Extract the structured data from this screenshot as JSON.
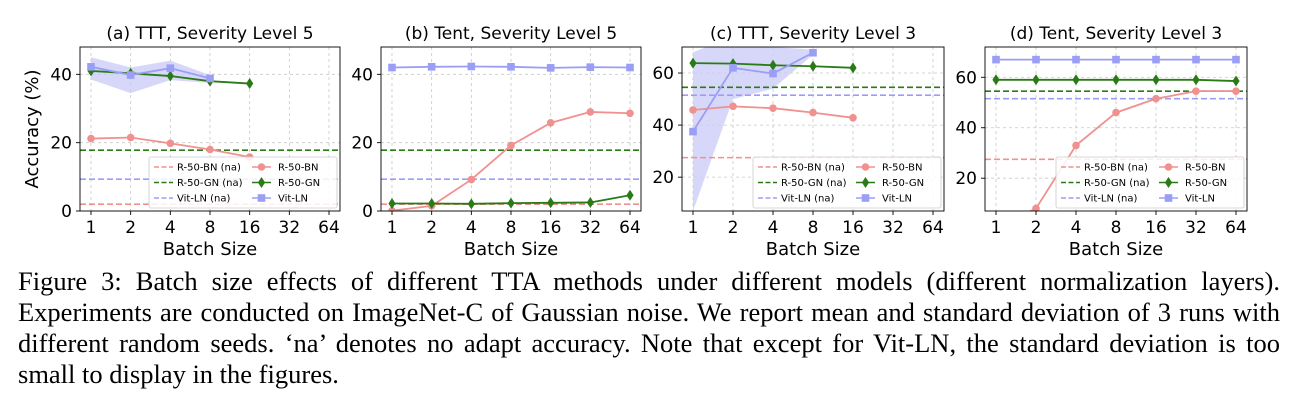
{
  "caption": "Figure 3: Batch size effects of different TTA methods under different models (different normalization layers). Experiments are conducted on ImageNet-C of Gaussian noise. We report mean and standard deviation of 3 runs with different random seeds. ‘na’ denotes no adapt accuracy. Note that except for Vit-LN, the standard deviation is too small to display in the figures.",
  "colors": {
    "bn": "#f0918f",
    "gn": "#2a7a17",
    "ln": "#9b9ef5",
    "band": "#c9cbf7",
    "grid": "#c8c8c8"
  },
  "chart_data": [
    {
      "type": "line",
      "title": "(a) TTT, Severity Level 5",
      "xlabel": "Batch Size",
      "ylabel": "Accuracy (%)",
      "x": [
        1,
        2,
        4,
        8,
        16,
        32,
        64
      ],
      "x_scale": "log2",
      "ylim": [
        0,
        48
      ],
      "yticks": [
        0,
        20,
        40
      ],
      "grid": true,
      "legend": "bottom-right",
      "baselines": [
        {
          "name": "R-50-BN (na)",
          "value": 2
        },
        {
          "name": "R-50-GN (na)",
          "value": 17.8
        },
        {
          "name": "Vit-LN (na)",
          "value": 9.3
        }
      ],
      "series": [
        {
          "name": "R-50-BN",
          "x": [
            1,
            2,
            4,
            8,
            16
          ],
          "values": [
            21.2,
            21.5,
            19.8,
            18.0,
            15.8
          ]
        },
        {
          "name": "R-50-GN",
          "x": [
            1,
            2,
            4,
            8,
            16
          ],
          "values": [
            41.0,
            40.3,
            39.5,
            38.0,
            37.3
          ]
        },
        {
          "name": "Vit-LN",
          "x": [
            1,
            2,
            4,
            8
          ],
          "values": [
            42.2,
            39.8,
            41.8,
            38.8
          ],
          "band_low": [
            38.5,
            34.5,
            38.3,
            37.5
          ],
          "band_high": [
            45.0,
            42.0,
            44.0,
            39.8
          ]
        }
      ]
    },
    {
      "type": "line",
      "title": "(b) Tent, Severity Level 5",
      "xlabel": "Batch Size",
      "ylabel": "",
      "x": [
        1,
        2,
        4,
        8,
        16,
        32,
        64
      ],
      "x_scale": "log2",
      "ylim": [
        0,
        48
      ],
      "yticks": [
        0,
        20,
        40
      ],
      "grid": true,
      "legend": "none",
      "baselines": [
        {
          "name": "R-50-BN (na)",
          "value": 2
        },
        {
          "name": "R-50-GN (na)",
          "value": 17.8
        },
        {
          "name": "Vit-LN (na)",
          "value": 9.3
        }
      ],
      "series": [
        {
          "name": "R-50-BN",
          "x": [
            1,
            2,
            4,
            8,
            16,
            32,
            64
          ],
          "values": [
            0.1,
            1.5,
            9.2,
            19.2,
            25.8,
            29.0,
            28.6
          ]
        },
        {
          "name": "R-50-GN",
          "x": [
            1,
            2,
            4,
            8,
            16,
            32,
            64
          ],
          "values": [
            2.2,
            2.2,
            2.1,
            2.3,
            2.4,
            2.5,
            4.6
          ]
        },
        {
          "name": "Vit-LN",
          "x": [
            1,
            2,
            4,
            8,
            16,
            32,
            64
          ],
          "values": [
            42.0,
            42.2,
            42.3,
            42.2,
            41.9,
            42.1,
            42.0
          ]
        }
      ]
    },
    {
      "type": "line",
      "title": "(c) TTT, Severity Level 3",
      "xlabel": "Batch Size",
      "ylabel": "",
      "x": [
        1,
        2,
        4,
        8,
        16,
        32,
        64
      ],
      "x_scale": "log2",
      "ylim": [
        7,
        70
      ],
      "yticks": [
        20,
        40,
        60
      ],
      "grid": true,
      "legend": "bottom-right",
      "baselines": [
        {
          "name": "R-50-BN (na)",
          "value": 27.5
        },
        {
          "name": "R-50-GN (na)",
          "value": 54.5
        },
        {
          "name": "Vit-LN (na)",
          "value": 51.5
        }
      ],
      "series": [
        {
          "name": "R-50-BN",
          "x": [
            1,
            2,
            4,
            8,
            16
          ],
          "values": [
            45.8,
            47.2,
            46.5,
            44.8,
            42.8
          ]
        },
        {
          "name": "R-50-GN",
          "x": [
            1,
            2,
            4,
            8,
            16
          ],
          "values": [
            63.8,
            63.6,
            63.0,
            62.6,
            62.0
          ]
        },
        {
          "name": "Vit-LN",
          "x": [
            1,
            2,
            4,
            8
          ],
          "values": [
            37.5,
            62.0,
            59.8,
            67.8
          ],
          "band_low": [
            7.0,
            50.0,
            54.0,
            67.0
          ],
          "band_high": [
            68.0,
            74.0,
            70.0,
            69.0
          ]
        }
      ]
    },
    {
      "type": "line",
      "title": "(d) Tent, Severity Level 3",
      "xlabel": "Batch Size",
      "ylabel": "",
      "x": [
        1,
        2,
        4,
        8,
        16,
        32,
        64
      ],
      "x_scale": "log2",
      "ylim": [
        7,
        72
      ],
      "yticks": [
        20,
        40,
        60
      ],
      "grid": true,
      "legend": "bottom-right",
      "baselines": [
        {
          "name": "R-50-BN (na)",
          "value": 27.5
        },
        {
          "name": "R-50-GN (na)",
          "value": 54.5
        },
        {
          "name": "Vit-LN (na)",
          "value": 51.5
        }
      ],
      "series": [
        {
          "name": "R-50-BN",
          "x": [
            1,
            2,
            4,
            8,
            16,
            32,
            64
          ],
          "values": [
            0.5,
            8.0,
            33.0,
            46.0,
            51.5,
            54.5,
            54.5
          ]
        },
        {
          "name": "R-50-GN",
          "x": [
            1,
            2,
            4,
            8,
            16,
            32,
            64
          ],
          "values": [
            59.0,
            59.0,
            59.0,
            59.0,
            59.0,
            59.0,
            58.5
          ]
        },
        {
          "name": "Vit-LN",
          "x": [
            1,
            2,
            4,
            8,
            16,
            32,
            64
          ],
          "values": [
            67.0,
            67.0,
            67.0,
            67.0,
            67.0,
            67.0,
            67.0
          ]
        }
      ]
    }
  ]
}
